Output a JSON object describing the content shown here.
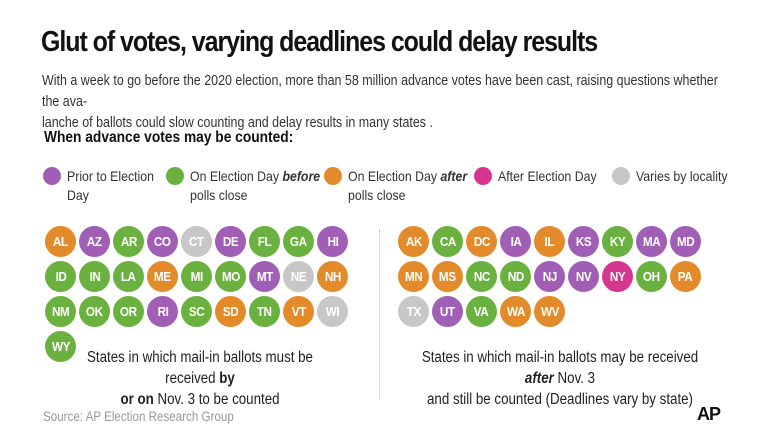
{
  "title": "Glut of votes, varying deadlines could delay results",
  "subtitle": "With a week to go before the 2020 election, more than 58 million advance votes have been cast, raising questions whether the ava-lanche of ballots could slow counting and delay results in many states .",
  "subtitle_lines": [
    "With a week to go before the 2020 election, more than 58 million advance votes have been cast, raising questions whether the ava-",
    "lanche of ballots could slow counting and delay results in many states ."
  ],
  "legend": {
    "heading": "When advance votes may be counted:",
    "items": [
      {
        "key": "prior",
        "color": "#a05fb5",
        "text": "Prior to Election Day",
        "line1": "Prior to Election",
        "line2": "Day"
      },
      {
        "key": "before",
        "color": "#6ab13f",
        "pre": "On Election Day ",
        "em": "before",
        "line2": "polls close"
      },
      {
        "key": "after",
        "color": "#e38a2b",
        "pre": "On Election Day ",
        "em": "after",
        "line2": "polls close"
      },
      {
        "key": "post",
        "color": "#d5378f",
        "text": "After Election Day",
        "line1": "After Election Day",
        "line2": ""
      },
      {
        "key": "varies",
        "color": "#c7c7c7",
        "text": "Varies by locality",
        "line1": "Varies by locality",
        "line2": ""
      }
    ]
  },
  "groups": [
    {
      "key": "by",
      "states": [
        {
          "abbr": "AL",
          "cat": "after"
        },
        {
          "abbr": "AZ",
          "cat": "prior"
        },
        {
          "abbr": "AR",
          "cat": "before"
        },
        {
          "abbr": "CO",
          "cat": "prior"
        },
        {
          "abbr": "CT",
          "cat": "varies"
        },
        {
          "abbr": "DE",
          "cat": "prior"
        },
        {
          "abbr": "FL",
          "cat": "before"
        },
        {
          "abbr": "GA",
          "cat": "before"
        },
        {
          "abbr": "HI",
          "cat": "prior"
        },
        {
          "abbr": "ID",
          "cat": "before"
        },
        {
          "abbr": "IN",
          "cat": "before"
        },
        {
          "abbr": "LA",
          "cat": "before"
        },
        {
          "abbr": "ME",
          "cat": "after"
        },
        {
          "abbr": "MI",
          "cat": "before"
        },
        {
          "abbr": "MO",
          "cat": "before"
        },
        {
          "abbr": "MT",
          "cat": "prior"
        },
        {
          "abbr": "NE",
          "cat": "varies"
        },
        {
          "abbr": "NH",
          "cat": "after"
        },
        {
          "abbr": "NM",
          "cat": "before"
        },
        {
          "abbr": "OK",
          "cat": "before"
        },
        {
          "abbr": "OR",
          "cat": "before"
        },
        {
          "abbr": "RI",
          "cat": "prior"
        },
        {
          "abbr": "SC",
          "cat": "before"
        },
        {
          "abbr": "SD",
          "cat": "after"
        },
        {
          "abbr": "TN",
          "cat": "before"
        },
        {
          "abbr": "VT",
          "cat": "after"
        },
        {
          "abbr": "WI",
          "cat": "varies"
        },
        {
          "abbr": "WY",
          "cat": "before"
        }
      ],
      "caption_pre": "States in which mail-in ballots must be received ",
      "caption_bold": "by or on",
      "caption_post": " Nov. 3 to be counted",
      "caption_line1_pre": "States in which mail-in ballots must be received ",
      "caption_line1_bold": "by",
      "caption_line2_bold": "or on",
      "caption_line2_post": " Nov. 3 to be counted"
    },
    {
      "key": "after",
      "states": [
        {
          "abbr": "AK",
          "cat": "after"
        },
        {
          "abbr": "CA",
          "cat": "before"
        },
        {
          "abbr": "DC",
          "cat": "after"
        },
        {
          "abbr": "IA",
          "cat": "prior"
        },
        {
          "abbr": "IL",
          "cat": "after"
        },
        {
          "abbr": "KS",
          "cat": "prior"
        },
        {
          "abbr": "KY",
          "cat": "before"
        },
        {
          "abbr": "MA",
          "cat": "prior"
        },
        {
          "abbr": "MD",
          "cat": "prior"
        },
        {
          "abbr": "MN",
          "cat": "after"
        },
        {
          "abbr": "MS",
          "cat": "after"
        },
        {
          "abbr": "NC",
          "cat": "before"
        },
        {
          "abbr": "ND",
          "cat": "before"
        },
        {
          "abbr": "NJ",
          "cat": "prior"
        },
        {
          "abbr": "NV",
          "cat": "prior"
        },
        {
          "abbr": "NY",
          "cat": "post"
        },
        {
          "abbr": "OH",
          "cat": "before"
        },
        {
          "abbr": "PA",
          "cat": "after"
        },
        {
          "abbr": "TX",
          "cat": "varies"
        },
        {
          "abbr": "UT",
          "cat": "prior"
        },
        {
          "abbr": "VA",
          "cat": "before"
        },
        {
          "abbr": "WA",
          "cat": "after"
        },
        {
          "abbr": "WV",
          "cat": "after"
        }
      ],
      "caption_line1_pre": "States in which mail-in ballots may be received ",
      "caption_line1_em": "after",
      "caption_line1_post": " Nov. 3",
      "caption_line2": "and still be counted (Deadlines vary by state)"
    }
  ],
  "source": "Source: AP Election Research Group",
  "logo": "AP"
}
